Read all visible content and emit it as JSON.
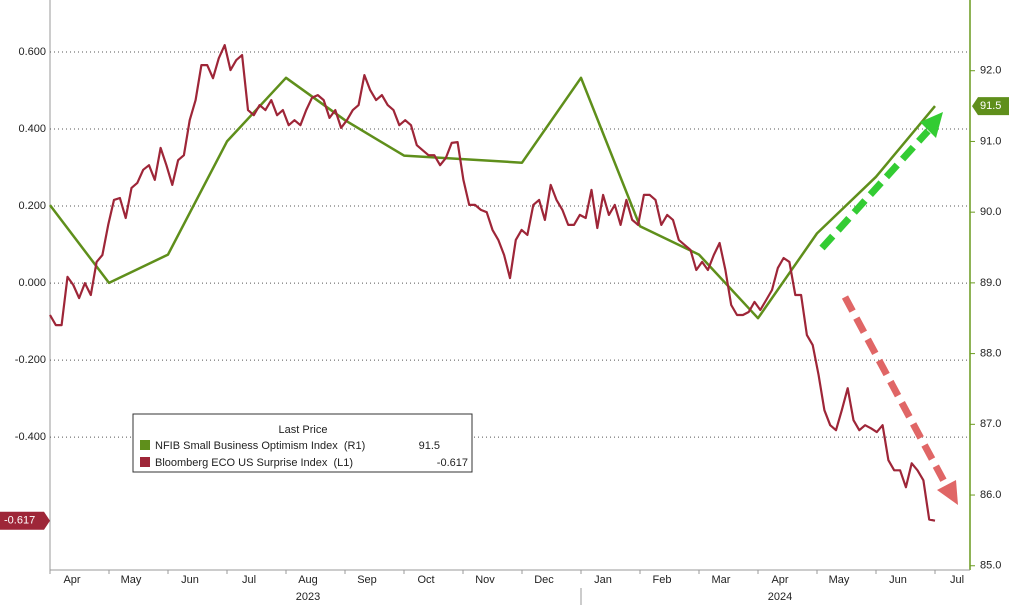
{
  "chart_data": {
    "type": "line",
    "xlim": [
      "2023-04",
      "2024-07"
    ],
    "xticks": [
      {
        "value": "2023-04",
        "label": "Apr"
      },
      {
        "value": "2023-05",
        "label": "May"
      },
      {
        "value": "2023-06",
        "label": "Jun"
      },
      {
        "value": "2023-07",
        "label": "Jul"
      },
      {
        "value": "2023-08",
        "label": "Aug"
      },
      {
        "value": "2023-09",
        "label": "Sep"
      },
      {
        "value": "2023-10",
        "label": "Oct"
      },
      {
        "value": "2023-11",
        "label": "Nov"
      },
      {
        "value": "2023-12",
        "label": "Dec"
      },
      {
        "value": "2024-01",
        "label": "Jan"
      },
      {
        "value": "2024-02",
        "label": "Feb"
      },
      {
        "value": "2024-03",
        "label": "Mar"
      },
      {
        "value": "2024-04",
        "label": "Apr"
      },
      {
        "value": "2024-05",
        "label": "May"
      },
      {
        "value": "2024-06",
        "label": "Jun"
      },
      {
        "value": "2024-07",
        "label": "Jul"
      }
    ],
    "years": [
      "2023",
      "2024"
    ],
    "ylim": [
      -0.745,
      0.735
    ],
    "yticks": [
      {
        "value": 0.6,
        "label": "0.600"
      },
      {
        "value": 0.4,
        "label": "0.400"
      },
      {
        "value": 0.2,
        "label": "0.200"
      },
      {
        "value": 0,
        "label": "0.000"
      },
      {
        "value": -0.2,
        "label": "-0.200"
      },
      {
        "value": -0.4,
        "label": "-0.400"
      }
    ],
    "y2lim": [
      84.94,
      93.0
    ],
    "y2ticks": [
      {
        "value": 92,
        "label": "92.0"
      },
      {
        "value": 91,
        "label": "91.0"
      },
      {
        "value": 90,
        "label": "90.0"
      },
      {
        "value": 89,
        "label": "89.0"
      },
      {
        "value": 88,
        "label": "88.0"
      },
      {
        "value": 87,
        "label": "87.0"
      },
      {
        "value": 86,
        "label": "86.0"
      },
      {
        "value": 85,
        "label": "85.0"
      }
    ],
    "grid": true,
    "legend_title": "Last Price",
    "series": [
      {
        "name": "NFIB Small Business Optimism Index  (R1)",
        "color": "#5f8f1b",
        "axis": "y2",
        "x": [
          "2023-04",
          "2023-05",
          "2023-06",
          "2023-07",
          "2023-08",
          "2023-09",
          "2023-10",
          "2023-12",
          "2024-01",
          "2024-02",
          "2024-03",
          "2024-04",
          "2024-05",
          "2024-06",
          "2024-07"
        ],
        "values": [
          90.1,
          89.0,
          89.4,
          91.0,
          91.9,
          91.3,
          90.8,
          90.7,
          91.9,
          89.8,
          89.4,
          88.5,
          89.7,
          90.5,
          91.5
        ]
      },
      {
        "name": "Bloomberg ECO US Surprise Index  (L1)",
        "color": "#9e2638",
        "values": [
          -0.083,
          -0.109,
          -0.109,
          0.016,
          -0.005,
          -0.039,
          0,
          -0.031,
          0.055,
          0.073,
          0.151,
          0.216,
          0.221,
          0.169,
          0.247,
          0.26,
          0.294,
          0.306,
          0.268,
          0.351,
          0.306,
          0.255,
          0.319,
          0.332,
          0.423,
          0.475,
          0.566,
          0.566,
          0.532,
          0.584,
          0.618,
          0.553,
          0.579,
          0.592,
          0.449,
          0.436,
          0.462,
          0.449,
          0.475,
          0.436,
          0.449,
          0.41,
          0.423,
          0.41,
          0.449,
          0.481,
          0.488,
          0.475,
          0.429,
          0.449,
          0.403,
          0.423,
          0.449,
          0.462,
          0.54,
          0.501,
          0.475,
          0.488,
          0.462,
          0.449,
          0.41,
          0.423,
          0.41,
          0.358,
          0.345,
          0.332,
          0.332,
          0.306,
          0.325,
          0.364,
          0.366,
          0.268,
          0.203,
          0.203,
          0.19,
          0.184,
          0.138,
          0.112,
          0.073,
          0.013,
          0.112,
          0.138,
          0.125,
          0.203,
          0.216,
          0.164,
          0.255,
          0.216,
          0.19,
          0.151,
          0.151,
          0.177,
          0.169,
          0.242,
          0.143,
          0.229,
          0.177,
          0.203,
          0.151,
          0.216,
          0.164,
          0.151,
          0.229,
          0.229,
          0.216,
          0.151,
          0.177,
          0.164,
          0.112,
          0.099,
          0.086,
          0.034,
          0.055,
          0.034,
          0.073,
          0.104,
          0.034,
          -0.057,
          -0.083,
          -0.083,
          -0.075,
          -0.049,
          -0.07,
          -0.044,
          -0.018,
          0.039,
          0.065,
          0.055,
          -0.031,
          -0.031,
          -0.135,
          -0.161,
          -0.239,
          -0.33,
          -0.369,
          -0.382,
          -0.33,
          -0.273,
          -0.356,
          -0.382,
          -0.369,
          -0.377,
          -0.387,
          -0.369,
          -0.46,
          -0.486,
          -0.486,
          -0.53,
          -0.468,
          -0.486,
          -0.512,
          -0.614,
          -0.617
        ]
      }
    ]
  }
}
